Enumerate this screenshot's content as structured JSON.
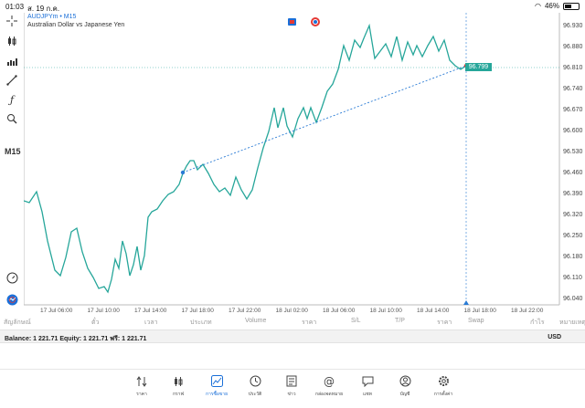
{
  "status": {
    "time": "01:03",
    "date": "ส. 19 ก.ค.",
    "battery": "46%",
    "battery_level": 0.46
  },
  "chart": {
    "symbol": "AUDJPYm • M15",
    "description": "Australian Dollar vs Japanese Yen",
    "timeframe": "M15",
    "current_price": "96.799",
    "price_ticks": [
      "96.930",
      "96.880",
      "96.810",
      "96.740",
      "96.670",
      "96.600",
      "96.530",
      "96.460",
      "96.390",
      "96.320",
      "96.250",
      "96.180",
      "96.110",
      "96.040"
    ],
    "time_ticks": [
      "17 Jul 06:00",
      "17 Jul 10:00",
      "17 Jul 14:00",
      "17 Jul 18:00",
      "17 Jul 22:00",
      "18 Jul 02:00",
      "18 Jul 06:00",
      "18 Jul 10:00",
      "18 Jul 14:00",
      "18 Jul 18:00",
      "18 Jul 22:00"
    ],
    "line_color": "#26a69a",
    "trendline_color": "#2a7bd5"
  },
  "columns": [
    "สัญลักษณ์",
    "ตั๋ว",
    "เวลา",
    "ประเภท",
    "Volume",
    "ราคา",
    "S/L",
    "T/P",
    "ราคา",
    "Swap",
    "กำไร",
    "หมายเหตุ"
  ],
  "balance": {
    "text": "Balance: 1 221.71 Equity: 1 221.71 ฟรี: 1 221.71",
    "currency": "USD"
  },
  "tabs": [
    {
      "label": "ราคา",
      "icon": "quotes-icon"
    },
    {
      "label": "กราฟ",
      "icon": "chart-candles-icon"
    },
    {
      "label": "การซื้อขาย",
      "icon": "trade-icon"
    },
    {
      "label": "ประวัติ",
      "icon": "history-icon"
    },
    {
      "label": "ข่าว",
      "icon": "news-icon"
    },
    {
      "label": "กล่องจดหมาย",
      "icon": "mailbox-icon"
    },
    {
      "label": "แชท",
      "icon": "chat-icon"
    },
    {
      "label": "บัญชี",
      "icon": "account-icon"
    },
    {
      "label": "การตั้งค่า",
      "icon": "settings-icon"
    }
  ],
  "active_tab": "การซื้อขาย"
}
